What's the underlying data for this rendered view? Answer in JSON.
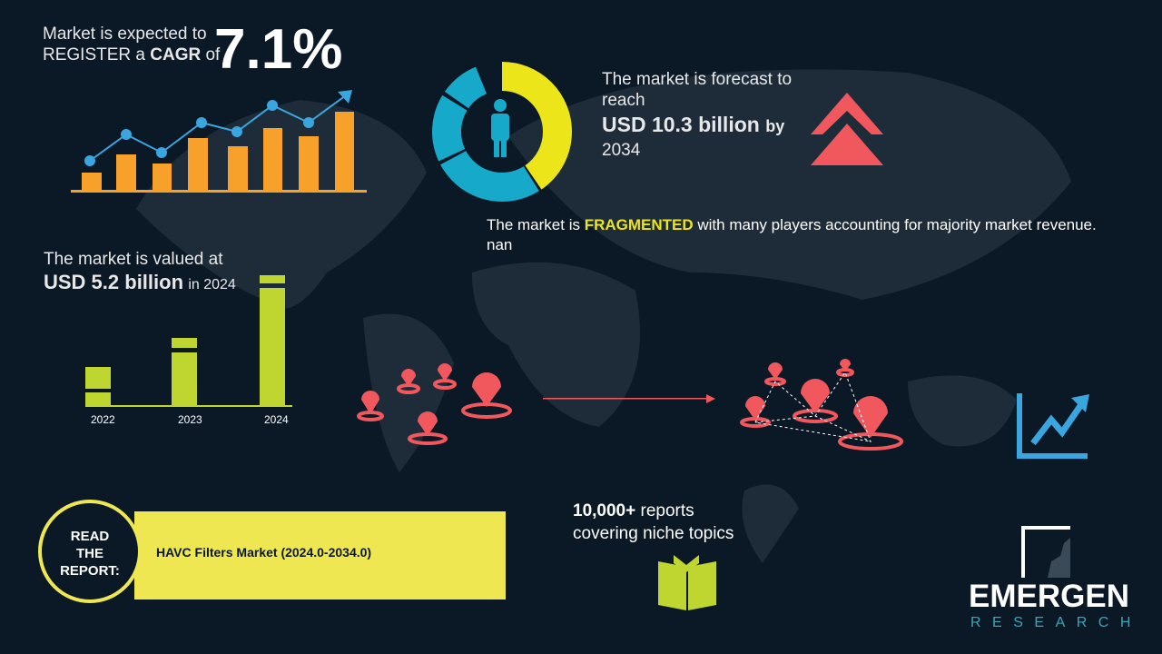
{
  "cagr": {
    "line1": "Market is expected to",
    "line2_pre": "REGISTER a ",
    "line2_bold": "CAGR",
    "line2_post": " of",
    "value": "7.1%"
  },
  "forecast": {
    "line1": "The market is forecast to",
    "line2": "reach",
    "amount": "USD 10.3 billion",
    "by": "by",
    "year": "2034"
  },
  "fragmented": {
    "pre": "The market is ",
    "highlight": "FRAGMENTED",
    "post": " with many players accounting for majority market revenue. nan"
  },
  "valued": {
    "line1": "The market is valued at",
    "amount": "USD 5.2 billion",
    "post": "in 2024"
  },
  "years": [
    "2022",
    "2023",
    "2024"
  ],
  "reports": {
    "count": "10,000+",
    "line1": " reports",
    "line2": "covering niche topics"
  },
  "read": {
    "l1": "READ",
    "l2": "THE",
    "l3": "REPORT:",
    "title": "HAVC Filters Market (2024.0-2034.0)"
  },
  "logo": {
    "name": "EMERGEN",
    "sub": "RESEARCH"
  },
  "colors": {
    "background": "#0b1826",
    "orange": "#f7a12a",
    "blue": "#3aa6e0",
    "yellow": "#ece51a",
    "green": "#bfd631",
    "red": "#f0585d",
    "band": "#efe752"
  }
}
